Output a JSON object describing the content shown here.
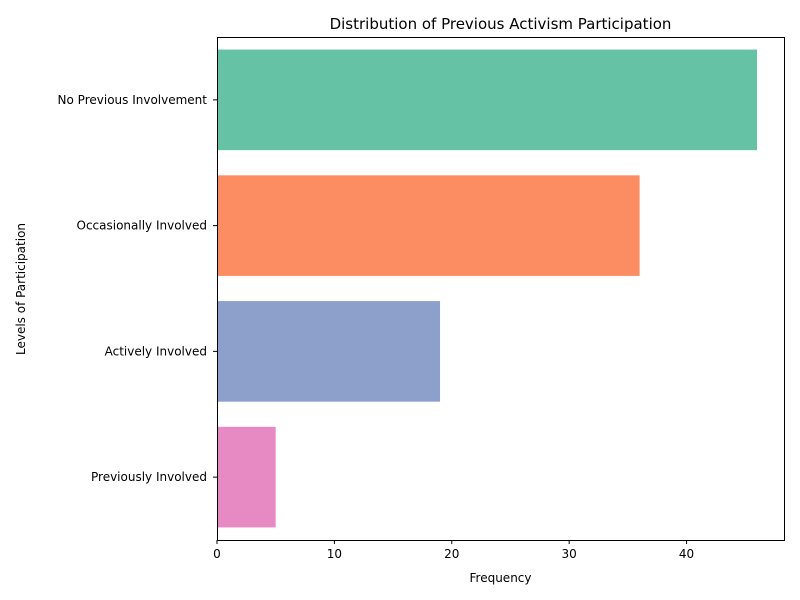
{
  "chart_data": {
    "type": "bar",
    "orientation": "horizontal",
    "title": "Distribution of Previous Activism Participation",
    "xlabel": "Frequency",
    "ylabel": "Levels of Participation",
    "categories": [
      "No Previous Involvement",
      "Occasionally Involved",
      "Actively Involved",
      "Previously Involved"
    ],
    "values": [
      46,
      36,
      19,
      5
    ],
    "colors": [
      "#66c2a5",
      "#fc8d62",
      "#8da0cb",
      "#e78ac3"
    ],
    "xlim": [
      0,
      48.3
    ],
    "xticks": [
      0,
      10,
      20,
      30,
      40
    ],
    "grid": false,
    "legend": "none"
  }
}
